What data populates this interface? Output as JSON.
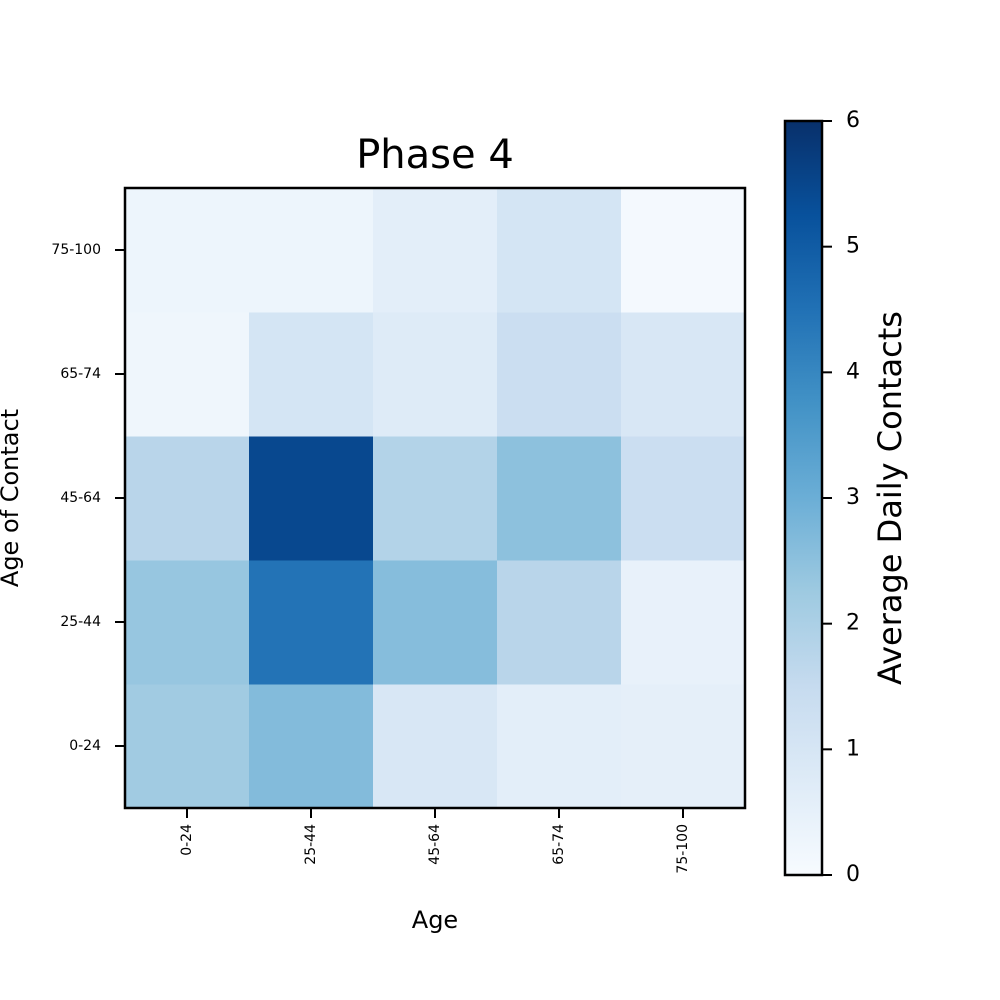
{
  "chart_data": {
    "type": "heatmap",
    "title": "Phase 4",
    "xlabel": "Age",
    "ylabel": "Age of Contact",
    "x_categories": [
      "0-24",
      "25-44",
      "45-64",
      "65-74",
      "75-100"
    ],
    "y_categories": [
      "0-24",
      "25-44",
      "45-64",
      "65-74",
      "75-100"
    ],
    "values": [
      [
        2.2,
        2.65,
        0.95,
        0.6,
        0.55
      ],
      [
        2.35,
        4.45,
        2.6,
        1.75,
        0.45
      ],
      [
        1.75,
        5.45,
        1.85,
        2.5,
        1.35
      ],
      [
        0.25,
        1.05,
        0.75,
        1.35,
        0.95
      ],
      [
        0.3,
        0.3,
        0.6,
        1.05,
        0.1
      ]
    ],
    "colorbar": {
      "label": "Average Daily Contacts",
      "range": [
        0,
        6
      ],
      "ticks": [
        0,
        1,
        2,
        3,
        4,
        5,
        6
      ],
      "colormap": "Blues"
    },
    "grid": false
  }
}
